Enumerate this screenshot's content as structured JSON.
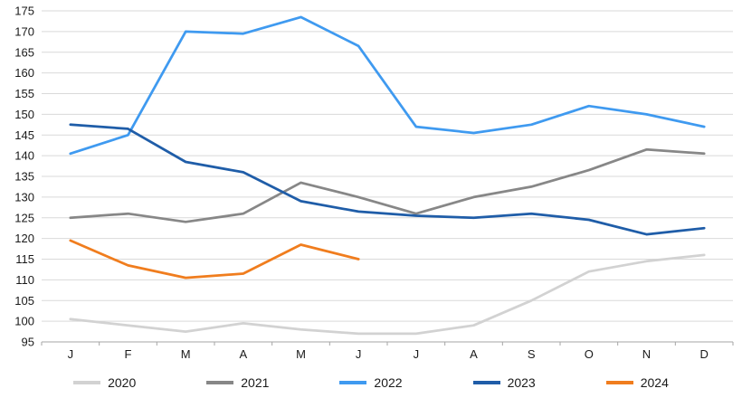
{
  "chart_data": {
    "type": "line",
    "title": "",
    "xlabel": "",
    "ylabel": "",
    "categories": [
      "J",
      "F",
      "M",
      "A",
      "M",
      "J",
      "J",
      "A",
      "S",
      "O",
      "N",
      "D"
    ],
    "ylim": [
      95,
      175
    ],
    "ytick_step": 5,
    "grid": true,
    "legend_position": "bottom",
    "series": [
      {
        "name": "2020",
        "color": "#d2d2d2",
        "values": [
          100.5,
          99,
          97.5,
          99.5,
          98,
          97,
          97,
          99,
          105,
          112,
          114.5,
          116
        ]
      },
      {
        "name": "2021",
        "color": "#878787",
        "values": [
          125,
          126,
          124,
          126,
          133.5,
          130,
          126,
          130,
          132.5,
          136.5,
          141.5,
          140.5
        ]
      },
      {
        "name": "2022",
        "color": "#3f9af0",
        "values": [
          140.5,
          145,
          170,
          169.5,
          173.5,
          166.5,
          147,
          145.5,
          147.5,
          152,
          150,
          147
        ]
      },
      {
        "name": "2023",
        "color": "#1f5da8",
        "values": [
          147.5,
          146.5,
          138.5,
          136,
          129,
          126.5,
          125.5,
          125,
          126,
          124.5,
          121,
          122.5
        ]
      },
      {
        "name": "2024",
        "color": "#f07d1e",
        "values": [
          119.5,
          113.5,
          110.5,
          111.5,
          118.5,
          115,
          null,
          null,
          null,
          null,
          null,
          null
        ]
      }
    ]
  },
  "style": {
    "gridline_color": "#d9d9d9",
    "axis_color": "#a6a6a6",
    "background_color": "#ffffff",
    "text_color": "#1a1a1a"
  }
}
